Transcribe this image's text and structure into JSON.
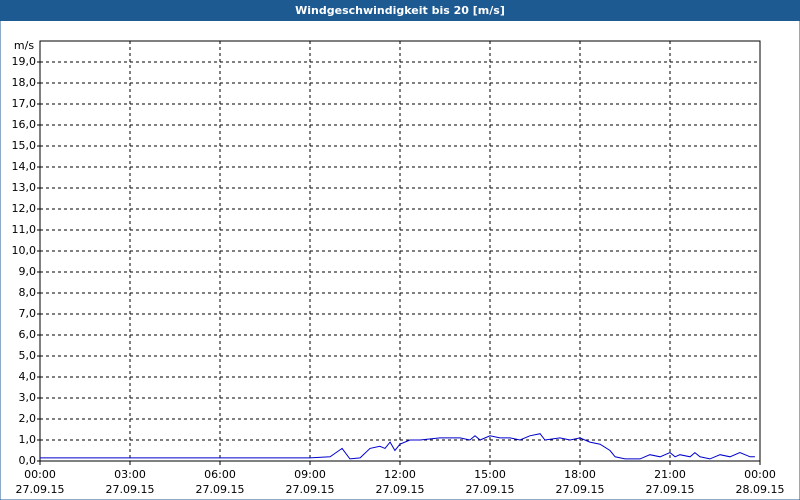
{
  "chart_data": {
    "type": "line",
    "title": "Windgeschwindigkeit bis 20 [m/s]",
    "y_label": "m/s",
    "x": [
      0,
      9,
      9.67,
      10.07,
      10.33,
      10.67,
      11,
      11.33,
      11.5,
      11.67,
      11.83,
      12,
      12.33,
      12.67,
      13.33,
      14,
      14.33,
      14.5,
      14.67,
      15,
      15.33,
      15.67,
      16,
      16.33,
      16.67,
      16.83,
      17.33,
      17.67,
      18,
      18.33,
      18.67,
      19,
      19.17,
      19.5,
      20,
      20.33,
      20.67,
      21,
      21.17,
      21.33,
      21.67,
      21.83,
      22,
      22.33,
      22.67,
      23,
      23.33,
      23.67,
      23.83
    ],
    "series": [
      {
        "color": "#0000cc",
        "values": [
          0.15,
          0.15,
          0.2,
          0.6,
          0.1,
          0.15,
          0.6,
          0.7,
          0.6,
          0.9,
          0.5,
          0.8,
          1.0,
          1.0,
          1.1,
          1.1,
          1.0,
          1.2,
          1.0,
          1.2,
          1.1,
          1.1,
          1.0,
          1.2,
          1.3,
          1.0,
          1.1,
          1.0,
          1.1,
          0.9,
          0.8,
          0.5,
          0.2,
          0.1,
          0.1,
          0.3,
          0.2,
          0.4,
          0.2,
          0.3,
          0.2,
          0.4,
          0.2,
          0.1,
          0.3,
          0.2,
          0.4,
          0.2,
          0.2
        ]
      }
    ],
    "xlim": [
      0,
      24
    ],
    "xticks": [
      {
        "value": 0,
        "label": "00:00"
      },
      {
        "value": 3,
        "label": "03:00"
      },
      {
        "value": 6,
        "label": "06:00"
      },
      {
        "value": 9,
        "label": "09:00"
      },
      {
        "value": 12,
        "label": "12:00"
      },
      {
        "value": 15,
        "label": "15:00"
      },
      {
        "value": 18,
        "label": "18:00"
      },
      {
        "value": 21,
        "label": "21:00"
      },
      {
        "value": 24,
        "label": "00:00"
      }
    ],
    "xtick_dates": [
      "27.09.15",
      "27.09.15",
      "27.09.15",
      "27.09.15",
      "27.09.15",
      "27.09.15",
      "27.09.15",
      "27.09.15",
      "28.09.15"
    ],
    "ylim": [
      0,
      20
    ],
    "yticks": [
      {
        "value": 0,
        "label": "0,0"
      },
      {
        "value": 1,
        "label": "1,0"
      },
      {
        "value": 2,
        "label": "2,0"
      },
      {
        "value": 3,
        "label": "3,0"
      },
      {
        "value": 4,
        "label": "4,0"
      },
      {
        "value": 5,
        "label": "5,0"
      },
      {
        "value": 6,
        "label": "6,0"
      },
      {
        "value": 7,
        "label": "7,0"
      },
      {
        "value": 8,
        "label": "8,0"
      },
      {
        "value": 9,
        "label": "9,0"
      },
      {
        "value": 10,
        "label": "10,0"
      },
      {
        "value": 11,
        "label": "11,0"
      },
      {
        "value": 12,
        "label": "12,0"
      },
      {
        "value": 13,
        "label": "13,0"
      },
      {
        "value": 14,
        "label": "14,0"
      },
      {
        "value": 15,
        "label": "15,0"
      },
      {
        "value": 16,
        "label": "16,0"
      },
      {
        "value": 17,
        "label": "17,0"
      },
      {
        "value": 18,
        "label": "18,0"
      },
      {
        "value": 19,
        "label": "19,0"
      }
    ],
    "grid": true
  }
}
